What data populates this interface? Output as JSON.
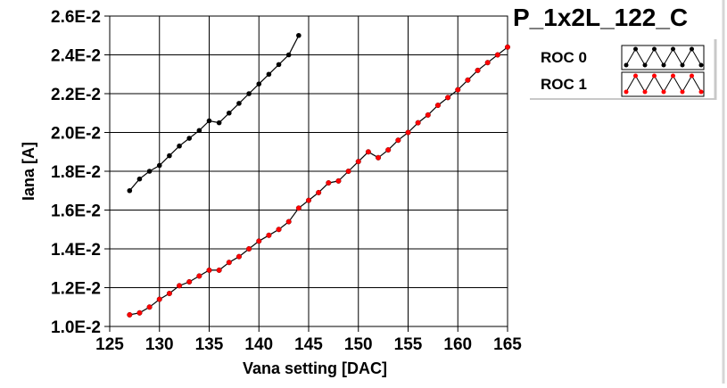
{
  "chart_data": {
    "type": "line",
    "title": "P_1x2L_122_C",
    "xlabel": "Vana setting [DAC]",
    "ylabel": "Iana [A]",
    "xlim": [
      125,
      165
    ],
    "ylim": [
      0.01,
      0.026
    ],
    "xticks": [
      125,
      130,
      135,
      140,
      145,
      150,
      155,
      160,
      165
    ],
    "xtick_labels": [
      "125",
      "130",
      "135",
      "140",
      "145",
      "150",
      "155",
      "160",
      "165"
    ],
    "yticks": [
      0.01,
      0.012,
      0.014,
      0.016,
      0.018,
      0.02,
      0.022,
      0.024,
      0.026
    ],
    "ytick_labels": [
      "1.0E-2",
      "1.2E-2",
      "1.4E-2",
      "1.6E-2",
      "1.8E-2",
      "2.0E-2",
      "2.2E-2",
      "2.4E-2",
      "2.6E-2"
    ],
    "grid": true,
    "legend_position": "right",
    "series": [
      {
        "name": "ROC 0",
        "color": "#000000",
        "x": [
          127,
          128,
          129,
          130,
          131,
          132,
          133,
          134,
          135,
          136,
          137,
          138,
          139,
          140,
          141,
          142,
          143,
          144
        ],
        "y": [
          0.017,
          0.0176,
          0.018,
          0.0183,
          0.0188,
          0.0193,
          0.0197,
          0.0201,
          0.0206,
          0.0205,
          0.021,
          0.0215,
          0.022,
          0.0225,
          0.023,
          0.0235,
          0.024,
          0.025
        ]
      },
      {
        "name": "ROC 1",
        "color": "#ff0000",
        "x": [
          127,
          128,
          129,
          130,
          131,
          132,
          133,
          134,
          135,
          136,
          137,
          138,
          139,
          140,
          141,
          142,
          143,
          144,
          145,
          146,
          147,
          148,
          149,
          150,
          151,
          152,
          153,
          154,
          155,
          156,
          157,
          158,
          159,
          160,
          161,
          162,
          163,
          164,
          165
        ],
        "y": [
          0.0106,
          0.0107,
          0.011,
          0.0114,
          0.0117,
          0.0121,
          0.0123,
          0.0126,
          0.0129,
          0.0129,
          0.0133,
          0.0136,
          0.014,
          0.0144,
          0.0147,
          0.015,
          0.0154,
          0.0161,
          0.0165,
          0.0169,
          0.0174,
          0.0175,
          0.018,
          0.0185,
          0.019,
          0.0187,
          0.0191,
          0.0196,
          0.02,
          0.0205,
          0.0209,
          0.0214,
          0.0218,
          0.0222,
          0.0227,
          0.0232,
          0.0236,
          0.024,
          0.0244
        ]
      }
    ]
  }
}
